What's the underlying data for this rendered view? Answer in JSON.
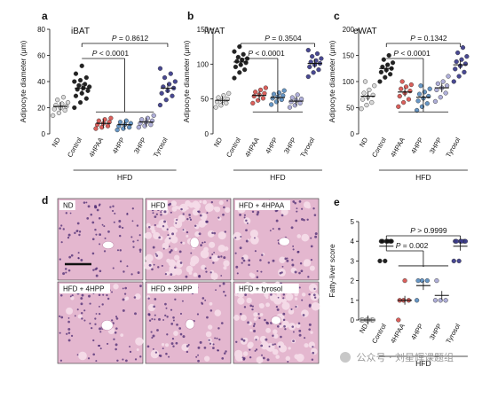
{
  "figure": {
    "panels": {
      "a": {
        "letter": "a",
        "title": "iBAT"
      },
      "b": {
        "letter": "b",
        "title": "iWAT"
      },
      "c": {
        "letter": "c",
        "title": "eWAT"
      },
      "d": {
        "letter": "d",
        "images": [
          "ND",
          "HFD",
          "HFD + 4HPAA",
          "HFD + 4HPP",
          "HFD + 3HPP",
          "HFD + tyrosol"
        ]
      },
      "e": {
        "letter": "e"
      }
    },
    "watermark": "公众号 · 刘星辉课题组",
    "colors": {
      "nd": "#d6d6d6",
      "control": "#111111",
      "hpaa": "#d9534f",
      "hpp4": "#5b8fc2",
      "hpp3": "#a9a9d6",
      "tyrosol": "#3a3a8a",
      "he_base": "#e4b7cf",
      "he_cell": "#f4dbe8",
      "he_nuclei": "#4b2a72"
    }
  },
  "chart_data": [
    {
      "id": "a",
      "type": "scatter",
      "title": "iBAT",
      "ylabel": "Adipocyte diameter (μm)",
      "categories": [
        "ND",
        "Control",
        "4HPAA",
        "4HPP",
        "3HPP",
        "Tyrosol"
      ],
      "group_label": "HFD",
      "ylim": [
        0,
        80
      ],
      "yticks": [
        0,
        20,
        40,
        60,
        80
      ],
      "means": [
        21,
        35,
        8,
        7,
        9,
        35
      ],
      "points": [
        [
          14,
          16,
          18,
          19,
          20,
          21,
          22,
          23,
          24,
          26,
          28
        ],
        [
          20,
          24,
          27,
          29,
          31,
          33,
          34,
          35,
          36,
          37,
          38,
          40,
          41,
          43,
          46,
          52
        ],
        [
          4,
          5,
          6,
          7,
          8,
          9,
          10,
          11,
          12
        ],
        [
          3,
          4,
          5,
          6,
          7,
          8,
          9,
          10
        ],
        [
          5,
          6,
          7,
          8,
          9,
          10,
          11,
          12,
          14
        ],
        [
          22,
          26,
          29,
          31,
          33,
          35,
          36,
          38,
          40,
          43,
          46,
          50
        ]
      ],
      "comparisons": [
        {
          "label": "P < 0.0001",
          "from": "Control",
          "to": [
            "4HPAA",
            "4HPP",
            "3HPP"
          ]
        },
        {
          "label": "P = 0.8612",
          "from": "Control",
          "to": [
            "Tyrosol"
          ]
        }
      ]
    },
    {
      "id": "b",
      "type": "scatter",
      "title": "iWAT",
      "ylabel": "Adipocyte diameter (μm)",
      "categories": [
        "ND",
        "Control",
        "4HPAA",
        "4HPP",
        "3HPP",
        "Tyrosol"
      ],
      "group_label": "HFD",
      "ylim": [
        0,
        150
      ],
      "yticks": [
        0,
        50,
        100,
        150
      ],
      "means": [
        48,
        103,
        55,
        52,
        47,
        101
      ],
      "points": [
        [
          38,
          41,
          44,
          46,
          48,
          50,
          52,
          55,
          58
        ],
        [
          80,
          88,
          92,
          96,
          99,
          102,
          104,
          106,
          108,
          110,
          114,
          118,
          125
        ],
        [
          44,
          48,
          51,
          54,
          56,
          58,
          60,
          63,
          66
        ],
        [
          42,
          46,
          49,
          51,
          53,
          55,
          57,
          59,
          62
        ],
        [
          38,
          41,
          44,
          46,
          48,
          50,
          52,
          56
        ],
        [
          82,
          88,
          92,
          96,
          99,
          101,
          103,
          105,
          108,
          111,
          115,
          120
        ]
      ],
      "comparisons": [
        {
          "label": "P < 0.0001",
          "from": "Control",
          "to": [
            "4HPAA",
            "4HPP",
            "3HPP"
          ]
        },
        {
          "label": "P = 0.3504",
          "from": "Control",
          "to": [
            "Tyrosol"
          ]
        }
      ]
    },
    {
      "id": "c",
      "type": "scatter",
      "title": "eWAT",
      "ylabel": "Adipocyte diameter (μm)",
      "categories": [
        "ND",
        "Control",
        "4HPAA",
        "4HPP",
        "3HPP",
        "Tyrosol"
      ],
      "group_label": "HFD",
      "ylim": [
        0,
        200
      ],
      "yticks": [
        0,
        50,
        100,
        150,
        200
      ],
      "means": [
        72,
        125,
        80,
        70,
        88,
        132
      ],
      "points": [
        [
          48,
          55,
          60,
          66,
          70,
          74,
          78,
          84,
          92,
          100
        ],
        [
          100,
          108,
          114,
          118,
          122,
          125,
          128,
          132,
          136,
          142,
          150
        ],
        [
          52,
          60,
          66,
          72,
          78,
          82,
          86,
          90,
          94,
          100
        ],
        [
          45,
          52,
          58,
          63,
          68,
          72,
          76,
          80,
          86,
          92
        ],
        [
          62,
          70,
          78,
          84,
          88,
          92,
          96,
          100,
          110
        ],
        [
          100,
          110,
          118,
          124,
          130,
          134,
          138,
          142,
          148,
          155,
          165
        ]
      ],
      "comparisons": [
        {
          "label": "P < 0.0001",
          "from": "Control",
          "to": [
            "4HPAA",
            "4HPP",
            "3HPP"
          ]
        },
        {
          "label": "P = 0.1342",
          "from": "Control",
          "to": [
            "Tyrosol"
          ]
        }
      ]
    },
    {
      "id": "e",
      "type": "scatter",
      "ylabel": "Fatty-liver score",
      "categories": [
        "ND",
        "Control",
        "4HPAA",
        "4HPP",
        "3HPP",
        "Tyrosol"
      ],
      "group_label": "HFD",
      "ylim": [
        0,
        5
      ],
      "yticks": [
        0,
        1,
        2,
        3,
        4,
        5
      ],
      "means": [
        0,
        3.75,
        1.0,
        1.75,
        1.25,
        3.75
      ],
      "points": [
        [
          0,
          0,
          0,
          0,
          0,
          0
        ],
        [
          3,
          3,
          4,
          4,
          4,
          4,
          4,
          4
        ],
        [
          0,
          1,
          1,
          1,
          2
        ],
        [
          1,
          2,
          2,
          2
        ],
        [
          1,
          1,
          1,
          2
        ],
        [
          3,
          3,
          4,
          4,
          4,
          4,
          4,
          4
        ]
      ],
      "comparisons": [
        {
          "label": "P = 0.002",
          "from": "Control",
          "to": [
            "4HPAA",
            "4HPP",
            "3HPP"
          ]
        },
        {
          "label": "P > 0.9999",
          "from": "Control",
          "to": [
            "Tyrosol"
          ]
        }
      ]
    }
  ]
}
